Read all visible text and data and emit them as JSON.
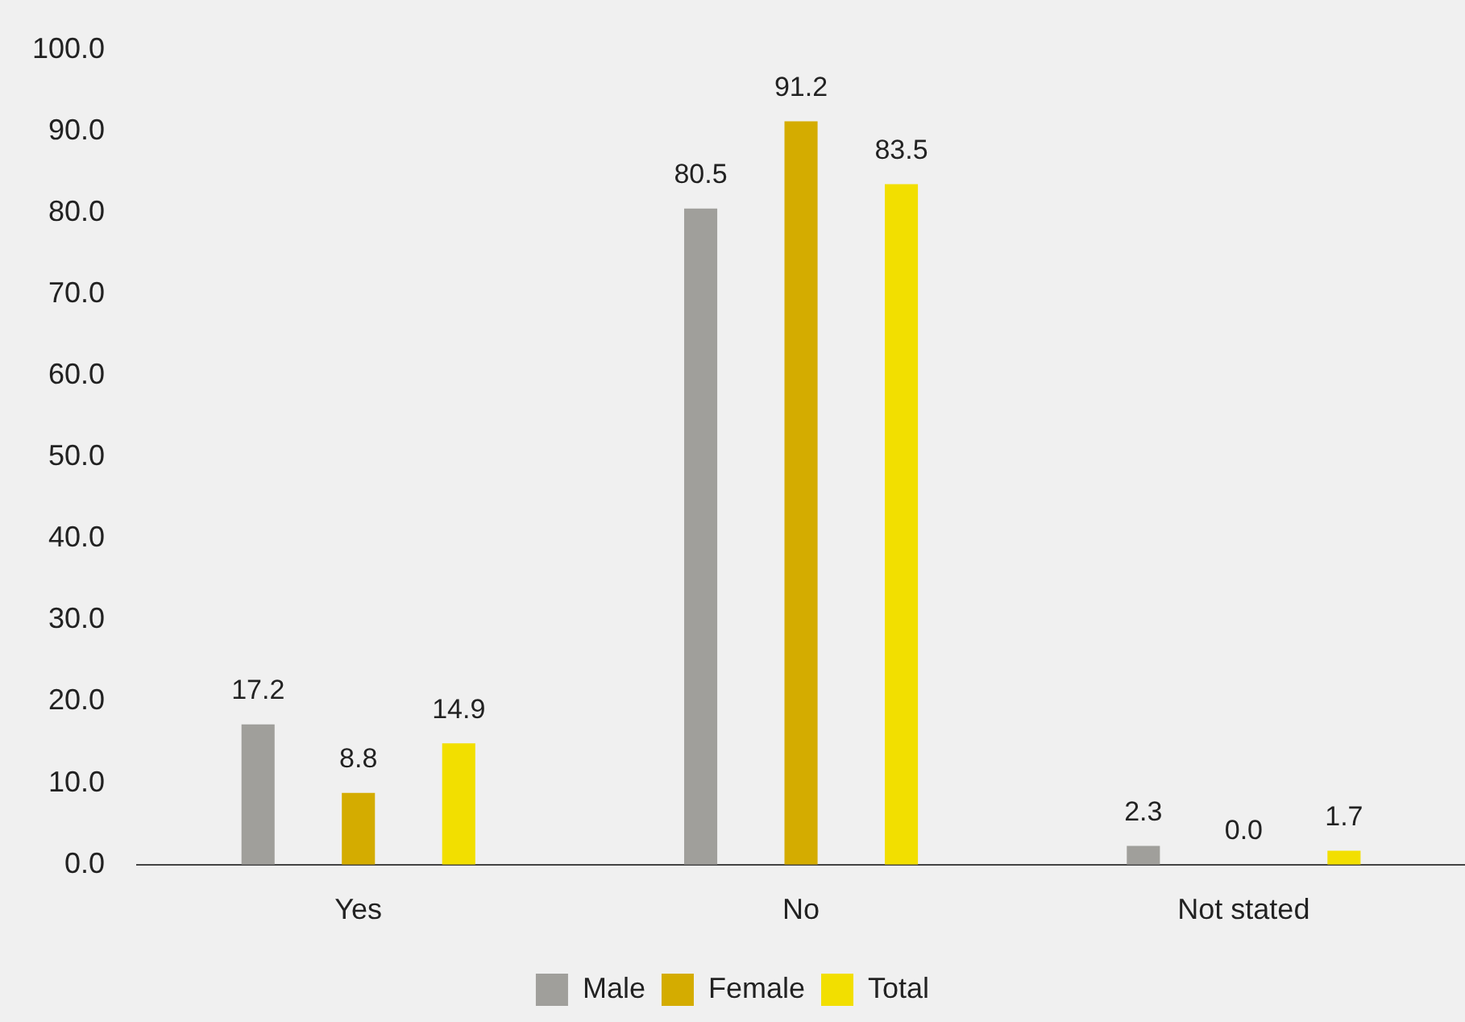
{
  "chart_data": {
    "type": "bar",
    "categories": [
      "Yes",
      "No",
      "Not stated"
    ],
    "series": [
      {
        "name": "Male",
        "color": "#a09f9b",
        "values": [
          17.2,
          80.5,
          2.3
        ],
        "value_labels": [
          "17.2",
          "80.5",
          "2.3"
        ]
      },
      {
        "name": "Female",
        "color": "#d4ac00",
        "values": [
          8.8,
          91.2,
          0
        ],
        "value_labels": [
          "8.8",
          "91.2",
          "0.0"
        ]
      },
      {
        "name": "Total",
        "color": "#f2df00",
        "values": [
          14.9,
          83.5,
          1.7
        ],
        "value_labels": [
          "14.9",
          "83.5",
          "1.7"
        ]
      }
    ],
    "ylim": [
      0,
      100
    ],
    "yticks": [
      {
        "value": 0,
        "label": "0.0"
      },
      {
        "value": 10,
        "label": "10.0"
      },
      {
        "value": 20,
        "label": "20.0"
      },
      {
        "value": 30,
        "label": "30.0"
      },
      {
        "value": 40,
        "label": "40.0"
      },
      {
        "value": 50,
        "label": "50.0"
      },
      {
        "value": 60,
        "label": "60.0"
      },
      {
        "value": 70,
        "label": "70.0"
      },
      {
        "value": 80,
        "label": "80.0"
      },
      {
        "value": 90,
        "label": "90.0"
      },
      {
        "value": 100,
        "label": "100.0"
      }
    ],
    "grid": false,
    "legend": "bottom"
  }
}
